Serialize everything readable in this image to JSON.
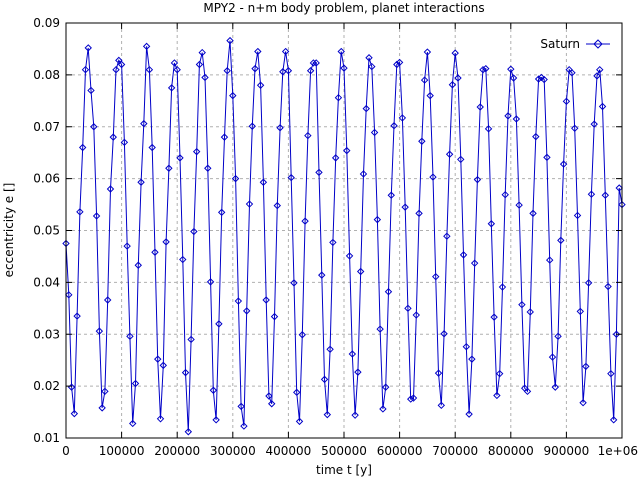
{
  "chart_data": {
    "type": "line",
    "title": "MPY2 - n+m body problem, planet interactions",
    "xlabel": "time t [y]",
    "ylabel": "eccentricity e []",
    "xlim": [
      0,
      1000000
    ],
    "ylim": [
      0.01,
      0.09
    ],
    "x_ticks": [
      0,
      100000,
      200000,
      300000,
      400000,
      500000,
      600000,
      700000,
      800000,
      900000,
      1000000
    ],
    "x_tick_labels": [
      "0",
      "100000",
      "200000",
      "300000",
      "400000",
      "500000",
      "600000",
      "700000",
      "800000",
      "900000",
      "1e+06"
    ],
    "y_ticks": [
      0.01,
      0.02,
      0.03,
      0.04,
      0.05,
      0.06,
      0.07,
      0.08,
      0.09
    ],
    "y_tick_labels": [
      "0.01",
      "0.02",
      "0.03",
      "0.04",
      "0.05",
      "0.06",
      "0.07",
      "0.08",
      "0.09"
    ],
    "grid": true,
    "legend_position": "top-right",
    "series": [
      {
        "name": "Saturn",
        "color": "#0000c8",
        "marker": "diamond",
        "x": [
          0,
          5000,
          10000,
          15000,
          20000,
          25000,
          30000,
          35000,
          40000,
          45000,
          50000,
          55000,
          60000,
          65000,
          70000,
          75000,
          80000,
          85000,
          90000,
          95000,
          100000,
          105000,
          110000,
          115000,
          120000,
          125000,
          130000,
          135000,
          140000,
          145000,
          150000,
          155000,
          160000,
          165000,
          170000,
          175000,
          180000,
          185000,
          190000,
          195000,
          200000,
          205000,
          210000,
          215000,
          220000,
          225000,
          230000,
          235000,
          240000,
          245000,
          250000,
          255000,
          260000,
          265000,
          270000,
          275000,
          280000,
          285000,
          290000,
          295000,
          300000,
          305000,
          310000,
          315000,
          320000,
          325000,
          330000,
          335000,
          340000,
          345000,
          350000,
          355000,
          360000,
          365000,
          370000,
          375000,
          380000,
          385000,
          390000,
          395000,
          400000,
          405000,
          410000,
          415000,
          420000,
          425000,
          430000,
          435000,
          440000,
          445000,
          450000,
          455000,
          460000,
          465000,
          470000,
          475000,
          480000,
          485000,
          490000,
          495000,
          500000,
          505000,
          510000,
          515000,
          520000,
          525000,
          530000,
          535000,
          540000,
          545000,
          550000,
          555000,
          560000,
          565000,
          570000,
          575000,
          580000,
          585000,
          590000,
          595000,
          600000,
          605000,
          610000,
          615000,
          620000,
          625000,
          630000,
          635000,
          640000,
          645000,
          650000,
          655000,
          660000,
          665000,
          670000,
          675000,
          680000,
          685000,
          690000,
          695000,
          700000,
          705000,
          710000,
          715000,
          720000,
          725000,
          730000,
          735000,
          740000,
          745000,
          750000,
          755000,
          760000,
          765000,
          770000,
          775000,
          780000,
          785000,
          790000,
          795000,
          800000,
          805000,
          810000,
          815000,
          820000,
          825000,
          830000,
          835000,
          840000,
          845000,
          850000,
          855000,
          860000,
          865000,
          870000,
          875000,
          880000,
          885000,
          890000,
          895000,
          900000,
          905000,
          910000,
          915000,
          920000,
          925000,
          930000,
          935000,
          940000,
          945000,
          950000,
          955000,
          960000,
          965000,
          970000,
          975000,
          980000,
          985000,
          990000,
          995000,
          1000000
        ],
        "y": [
          0.0475,
          0.0376,
          0.0198,
          0.0147,
          0.0335,
          0.0536,
          0.066,
          0.081,
          0.0852,
          0.077,
          0.07,
          0.0528,
          0.0306,
          0.0158,
          0.019,
          0.0366,
          0.058,
          0.068,
          0.081,
          0.0828,
          0.082,
          0.067,
          0.047,
          0.0296,
          0.0128,
          0.0205,
          0.0433,
          0.0593,
          0.0706,
          0.0855,
          0.081,
          0.066,
          0.0458,
          0.0252,
          0.0137,
          0.024,
          0.0478,
          0.062,
          0.0775,
          0.0823,
          0.081,
          0.064,
          0.0444,
          0.0226,
          0.0112,
          0.029,
          0.0498,
          0.0652,
          0.082,
          0.0843,
          0.0795,
          0.062,
          0.0401,
          0.0192,
          0.0135,
          0.032,
          0.0535,
          0.068,
          0.0808,
          0.0866,
          0.076,
          0.06,
          0.0364,
          0.0161,
          0.0123,
          0.0345,
          0.0551,
          0.0701,
          0.0812,
          0.0845,
          0.078,
          0.0593,
          0.0366,
          0.0181,
          0.0166,
          0.0334,
          0.0548,
          0.0698,
          0.0806,
          0.0845,
          0.0808,
          0.0602,
          0.0399,
          0.0188,
          0.0132,
          0.0299,
          0.0518,
          0.0683,
          0.0808,
          0.0823,
          0.0823,
          0.0612,
          0.0414,
          0.0213,
          0.0145,
          0.0271,
          0.0477,
          0.064,
          0.0756,
          0.0845,
          0.0813,
          0.0654,
          0.0451,
          0.0262,
          0.0144,
          0.0227,
          0.0421,
          0.0609,
          0.0735,
          0.0833,
          0.0816,
          0.0689,
          0.0521,
          0.031,
          0.0156,
          0.0198,
          0.0382,
          0.0568,
          0.0702,
          0.082,
          0.0824,
          0.0717,
          0.0545,
          0.035,
          0.0175,
          0.0177,
          0.0337,
          0.0533,
          0.0672,
          0.079,
          0.0844,
          0.076,
          0.0603,
          0.0411,
          0.0225,
          0.0163,
          0.0301,
          0.0489,
          0.0647,
          0.0781,
          0.0842,
          0.0794,
          0.0637,
          0.0453,
          0.0276,
          0.0146,
          0.0252,
          0.0437,
          0.0598,
          0.0738,
          0.081,
          0.0812,
          0.0696,
          0.0513,
          0.0333,
          0.0182,
          0.0224,
          0.0391,
          0.0569,
          0.0721,
          0.0811,
          0.0794,
          0.0715,
          0.0549,
          0.0357,
          0.0196,
          0.019,
          0.0343,
          0.0533,
          0.0681,
          0.0792,
          0.0795,
          0.0791,
          0.0641,
          0.0443,
          0.0256,
          0.0198,
          0.0296,
          0.0481,
          0.0628,
          0.0749,
          0.081,
          0.0804,
          0.0697,
          0.0529,
          0.0344,
          0.0168,
          0.0238,
          0.0399,
          0.057,
          0.0705,
          0.0798,
          0.081,
          0.0739,
          0.0568,
          0.0392,
          0.0224,
          0.0135,
          0.03,
          0.0582,
          0.055
        ]
      }
    ]
  }
}
